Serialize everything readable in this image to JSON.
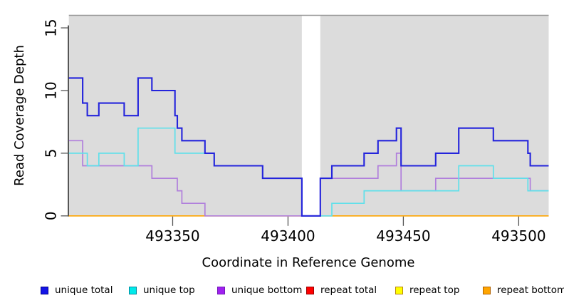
{
  "chart_data": {
    "type": "line",
    "subtype": "step-coverage",
    "title": "",
    "xlabel": "Coordinate in Reference Genome",
    "ylabel": "Read Coverage Depth",
    "xlim": [
      493305,
      493513
    ],
    "ylim": [
      0,
      16
    ],
    "x_ticks": [
      493350,
      493400,
      493450,
      493500
    ],
    "y_ticks": [
      0,
      5,
      10,
      15
    ],
    "grid": false,
    "legend_position": "bottom",
    "panel_bg": "#dcdcdc",
    "panel_border": "#979797",
    "gap_region": [
      493406,
      493414
    ],
    "series": [
      {
        "name": "unique total",
        "color": "#2424dc",
        "width": 2.1,
        "points": [
          [
            493305,
            11
          ],
          [
            493311,
            9
          ],
          [
            493313,
            8
          ],
          [
            493318,
            9
          ],
          [
            493329,
            8
          ],
          [
            493335,
            11
          ],
          [
            493341,
            10
          ],
          [
            493351,
            8
          ],
          [
            493352,
            7
          ],
          [
            493354,
            6
          ],
          [
            493364,
            5
          ],
          [
            493368,
            4
          ],
          [
            493389,
            3
          ],
          [
            493406,
            0
          ],
          [
            493414,
            3
          ],
          [
            493419,
            4
          ],
          [
            493433,
            5
          ],
          [
            493439,
            6
          ],
          [
            493447,
            7
          ],
          [
            493449,
            4
          ],
          [
            493464,
            5
          ],
          [
            493474,
            7
          ],
          [
            493489,
            6
          ],
          [
            493504,
            5
          ],
          [
            493505,
            4
          ]
        ]
      },
      {
        "name": "unique top",
        "color": "#5fe0ea",
        "width": 1.7,
        "points": [
          [
            493305,
            5
          ],
          [
            493313,
            4
          ],
          [
            493318,
            5
          ],
          [
            493329,
            4
          ],
          [
            493335,
            7
          ],
          [
            493351,
            5
          ],
          [
            493368,
            4
          ],
          [
            493389,
            3
          ],
          [
            493406,
            0
          ],
          [
            493419,
            1
          ],
          [
            493433,
            2
          ],
          [
            493474,
            4
          ],
          [
            493489,
            3
          ],
          [
            493504,
            2
          ]
        ]
      },
      {
        "name": "unique bottom",
        "color": "#b07edc",
        "width": 1.7,
        "points": [
          [
            493305,
            6
          ],
          [
            493311,
            4
          ],
          [
            493341,
            3
          ],
          [
            493352,
            2
          ],
          [
            493354,
            1
          ],
          [
            493364,
            0
          ],
          [
            493414,
            3
          ],
          [
            493439,
            4
          ],
          [
            493447,
            5
          ],
          [
            493449,
            2
          ],
          [
            493464,
            3
          ],
          [
            493505,
            2
          ]
        ]
      },
      {
        "name": "repeat total",
        "color": "#e02020",
        "width": 1.4,
        "points": [
          [
            493305,
            0
          ]
        ]
      },
      {
        "name": "repeat top",
        "color": "#f5f500",
        "width": 1.4,
        "points": [
          [
            493305,
            0
          ]
        ]
      },
      {
        "name": "repeat bottom",
        "color": "#ffa500",
        "width": 1.7,
        "points": [
          [
            493305,
            0
          ]
        ]
      }
    ]
  },
  "legend": {
    "items": [
      {
        "label": "unique total",
        "fill": "#1414e6",
        "border": "#00008b"
      },
      {
        "label": "unique top",
        "fill": "#00eaea",
        "border": "#008b9e"
      },
      {
        "label": "unique bottom",
        "fill": "#a020f0",
        "border": "#7218b8"
      },
      {
        "label": "repeat total",
        "fill": "#ff0000",
        "border": "#990000"
      },
      {
        "label": "repeat top",
        "fill": "#ffff00",
        "border": "#b8860b"
      },
      {
        "label": "repeat bottom",
        "fill": "#ffa500",
        "border": "#b06000"
      }
    ]
  }
}
